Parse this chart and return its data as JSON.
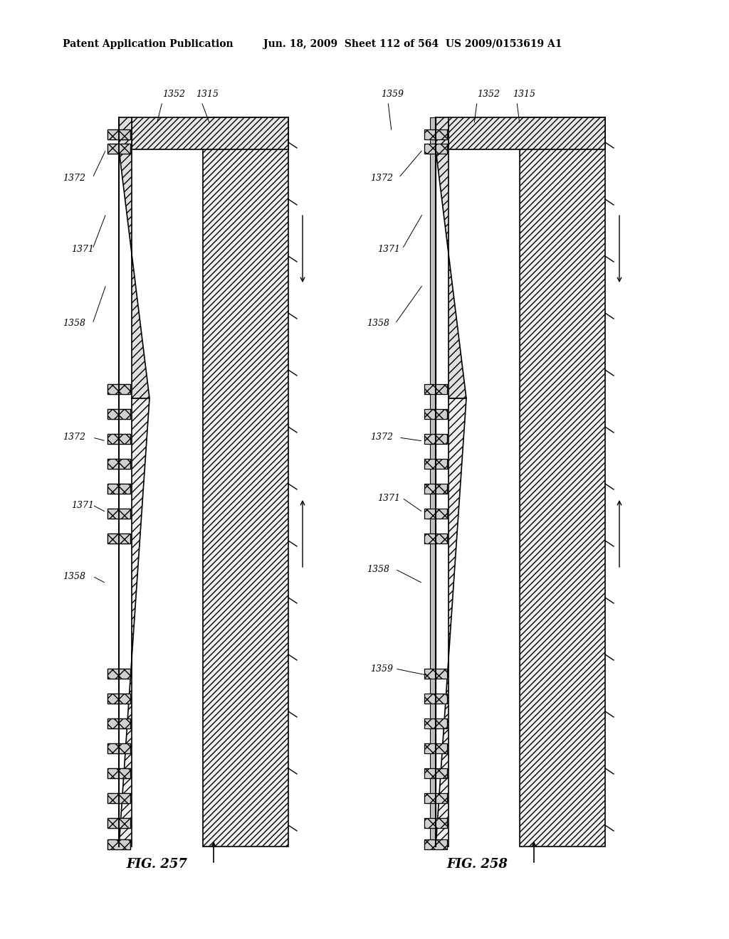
{
  "title_line1": "Patent Application Publication",
  "title_line2": "Jun. 18, 2009  Sheet 112 of 564  US 2009/0153619 A1",
  "fig1_label": "FIG. 257",
  "fig2_label": "FIG. 258",
  "bg_color": "#ffffff",
  "line_color": "#000000",
  "hatch_color": "#000000",
  "labels_fig1": [
    "1352",
    "1315",
    "1372",
    "1371",
    "1358",
    "1372",
    "1371",
    "1358"
  ],
  "labels_fig2": [
    "1359",
    "1352",
    "1315",
    "1372",
    "1371",
    "1358",
    "1359",
    "1372",
    "1371",
    "1358"
  ]
}
